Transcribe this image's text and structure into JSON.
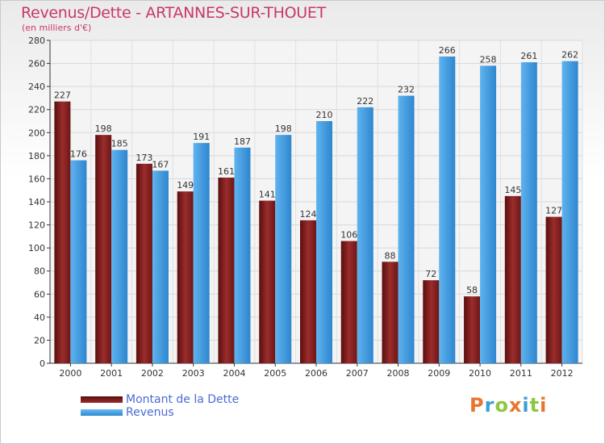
{
  "chart_data": {
    "type": "bar",
    "title": "Revenus/Dette - ARTANNES-SUR-THOUET",
    "subtitle": "(en milliers d'€)",
    "categories": [
      "2000",
      "2001",
      "2002",
      "2003",
      "2004",
      "2005",
      "2006",
      "2007",
      "2008",
      "2009",
      "2010",
      "2011",
      "2012"
    ],
    "series": [
      {
        "name": "Montant de la Dette",
        "color": "#7a1c1c",
        "values": [
          227,
          198,
          173,
          149,
          161,
          141,
          124,
          106,
          88,
          72,
          58,
          145,
          127
        ]
      },
      {
        "name": "Revenus",
        "color": "#3d9be0",
        "values": [
          176,
          185,
          167,
          191,
          187,
          198,
          210,
          222,
          232,
          266,
          258,
          261,
          262
        ]
      }
    ],
    "ylim": [
      0,
      280
    ],
    "yticks": [
      0,
      20,
      40,
      60,
      80,
      100,
      120,
      140,
      160,
      180,
      200,
      220,
      240,
      260,
      280
    ],
    "grid": true,
    "legend": "bottom-left"
  },
  "logo": {
    "letters": [
      "P",
      "r",
      "o",
      "x",
      "i",
      "t",
      "i"
    ]
  }
}
